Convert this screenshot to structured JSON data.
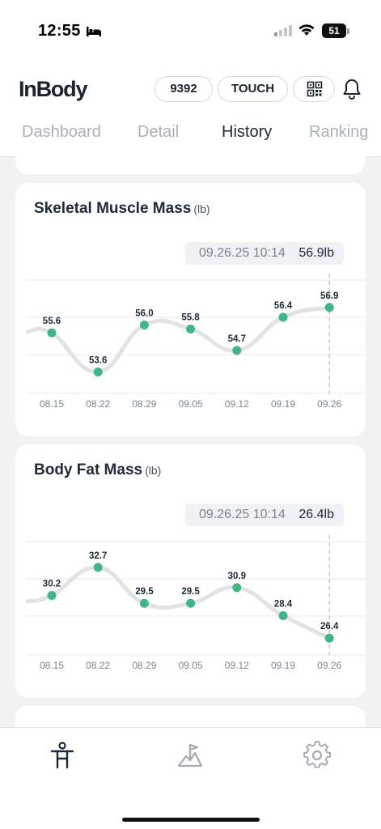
{
  "status_bar": {
    "time": "12:55",
    "battery": "51"
  },
  "header": {
    "logo": "InBody",
    "member_id": "9392",
    "touch_label": "TOUCH",
    "icons": [
      "qr-code-icon",
      "bell-icon"
    ]
  },
  "tabs": [
    {
      "label": "Dashboard",
      "active": false
    },
    {
      "label": "Detail",
      "active": false
    },
    {
      "label": "History",
      "active": true
    },
    {
      "label": "Ranking",
      "active": false
    }
  ],
  "charts": [
    {
      "title": "Skeletal Muscle Mass",
      "unit": "(lb)",
      "tooltip": {
        "date": "09.26.25 10:14",
        "value": "56.9lb"
      }
    },
    {
      "title": "Body Fat Mass",
      "unit": "(lb)",
      "tooltip": {
        "date": "09.26.25 10:14",
        "value": "26.4lb"
      }
    }
  ],
  "chart_data": [
    {
      "type": "line",
      "title": "Skeletal Muscle Mass",
      "categories": [
        "08.15",
        "08.22",
        "08.29",
        "09.05",
        "09.12",
        "09.19",
        "09.26"
      ],
      "values": [
        55.6,
        53.6,
        56.0,
        55.8,
        54.7,
        56.4,
        56.9
      ],
      "value_labels": [
        "55.6",
        "53.6",
        "56.0",
        "55.8",
        "54.7",
        "56.4",
        "56.9"
      ],
      "ylim": [
        52.5,
        58.3
      ],
      "series_color": "#41b488",
      "line_color": "#e1e2e5",
      "selected_index": 6
    },
    {
      "type": "line",
      "title": "Body Fat Mass",
      "categories": [
        "08.15",
        "08.22",
        "08.29",
        "09.05",
        "09.12",
        "09.19",
        "09.26"
      ],
      "values": [
        30.2,
        32.7,
        29.5,
        29.5,
        30.9,
        28.4,
        26.4
      ],
      "value_labels": [
        "30.2",
        "32.7",
        "29.5",
        "29.5",
        "30.9",
        "28.4",
        "26.4"
      ],
      "ylim": [
        24.9,
        35.0
      ],
      "series_color": "#41b488",
      "line_color": "#e1e2e5",
      "selected_index": 6
    }
  ],
  "bottom_nav": [
    {
      "name": "body-composition-icon",
      "active": true
    },
    {
      "name": "goal-flag-icon",
      "active": false
    },
    {
      "name": "settings-gear-icon",
      "active": false
    }
  ]
}
